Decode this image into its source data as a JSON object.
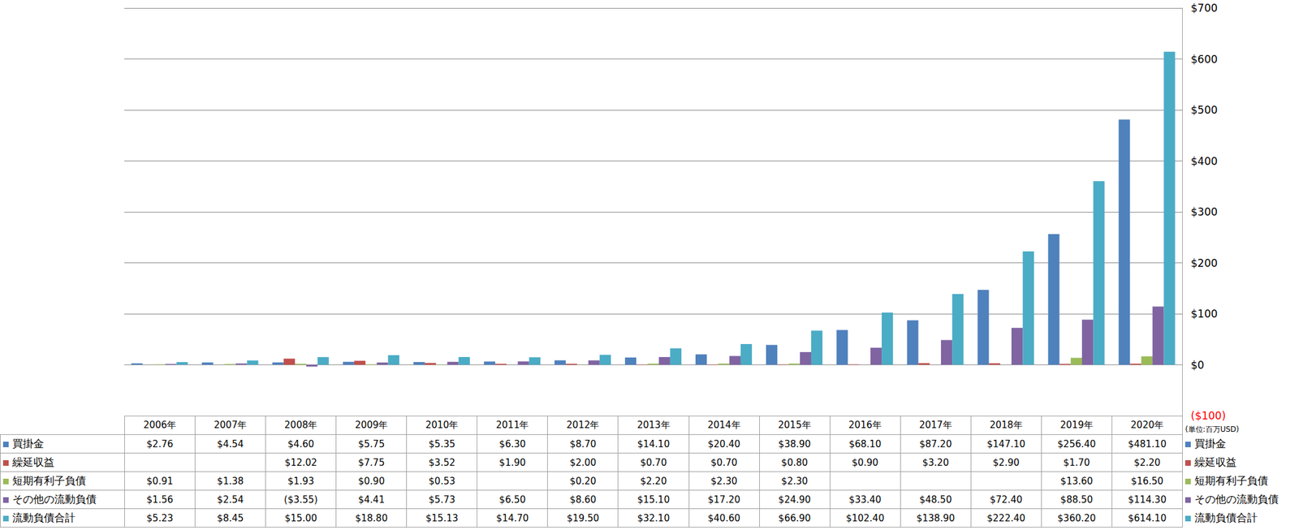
{
  "chart_data": {
    "type": "bar",
    "categories": [
      "2006年",
      "2007年",
      "2008年",
      "2009年",
      "2010年",
      "2011年",
      "2012年",
      "2013年",
      "2014年",
      "2015年",
      "2016年",
      "2017年",
      "2018年",
      "2019年",
      "2020年"
    ],
    "ylabel": "(単位:百万USD)",
    "ylim": [
      -100,
      700
    ],
    "yticks": [
      {
        "value": -100,
        "label": "($100)"
      },
      {
        "value": 0,
        "label": "$0"
      },
      {
        "value": 100,
        "label": "$100"
      },
      {
        "value": 200,
        "label": "$200"
      },
      {
        "value": 300,
        "label": "$300"
      },
      {
        "value": 400,
        "label": "$400"
      },
      {
        "value": 500,
        "label": "$500"
      },
      {
        "value": 600,
        "label": "$600"
      },
      {
        "value": 700,
        "label": "$700"
      }
    ],
    "grid": true,
    "series": [
      {
        "name": "買掛金",
        "color": "#4F81BD",
        "values": [
          2.76,
          4.54,
          4.6,
          5.75,
          5.35,
          6.3,
          8.7,
          14.1,
          20.4,
          38.9,
          68.1,
          87.2,
          147.1,
          256.4,
          481.1
        ],
        "value_labels": [
          "$2.76",
          "$4.54",
          "$4.60",
          "$5.75",
          "$5.35",
          "$6.30",
          "$8.70",
          "$14.10",
          "$20.40",
          "$38.90",
          "$68.10",
          "$87.20",
          "$147.10",
          "$256.40",
          "$481.10"
        ]
      },
      {
        "name": "繰延収益",
        "color": "#C0504D",
        "values": [
          null,
          null,
          12.02,
          7.75,
          3.52,
          1.9,
          2.0,
          0.7,
          0.7,
          0.8,
          0.9,
          3.2,
          2.9,
          1.7,
          2.2
        ],
        "value_labels": [
          null,
          null,
          "$12.02",
          "$7.75",
          "$3.52",
          "$1.90",
          "$2.00",
          "$0.70",
          "$0.70",
          "$0.80",
          "$0.90",
          "$3.20",
          "$2.90",
          "$1.70",
          "$2.20"
        ]
      },
      {
        "name": "短期有利子負債",
        "color": "#9BBB59",
        "values": [
          0.91,
          1.38,
          1.93,
          0.9,
          0.53,
          null,
          0.2,
          2.2,
          2.3,
          2.3,
          null,
          null,
          null,
          13.6,
          16.5
        ],
        "value_labels": [
          "$0.91",
          "$1.38",
          "$1.93",
          "$0.90",
          "$0.53",
          null,
          "$0.20",
          "$2.20",
          "$2.30",
          "$2.30",
          null,
          null,
          null,
          "$13.60",
          "$16.50"
        ]
      },
      {
        "name": "その他の流動負債",
        "color": "#8064A2",
        "values": [
          1.56,
          2.54,
          -3.55,
          4.41,
          5.73,
          6.5,
          8.6,
          15.1,
          17.2,
          24.9,
          33.4,
          48.5,
          72.4,
          88.5,
          114.3
        ],
        "value_labels": [
          "$1.56",
          "$2.54",
          "($3.55)",
          "$4.41",
          "$5.73",
          "$6.50",
          "$8.60",
          "$15.10",
          "$17.20",
          "$24.90",
          "$33.40",
          "$48.50",
          "$72.40",
          "$88.50",
          "$114.30"
        ]
      },
      {
        "name": "流動負債合計",
        "color": "#4BACC6",
        "values": [
          5.23,
          8.45,
          15.0,
          18.8,
          15.13,
          14.7,
          19.5,
          32.1,
          40.6,
          66.9,
          102.4,
          138.9,
          222.4,
          360.2,
          614.1
        ],
        "value_labels": [
          "$5.23",
          "$8.45",
          "$15.00",
          "$18.80",
          "$15.13",
          "$14.70",
          "$19.50",
          "$32.10",
          "$40.60",
          "$66.90",
          "$102.40",
          "$138.90",
          "$222.40",
          "$360.20",
          "$614.10"
        ]
      }
    ]
  }
}
